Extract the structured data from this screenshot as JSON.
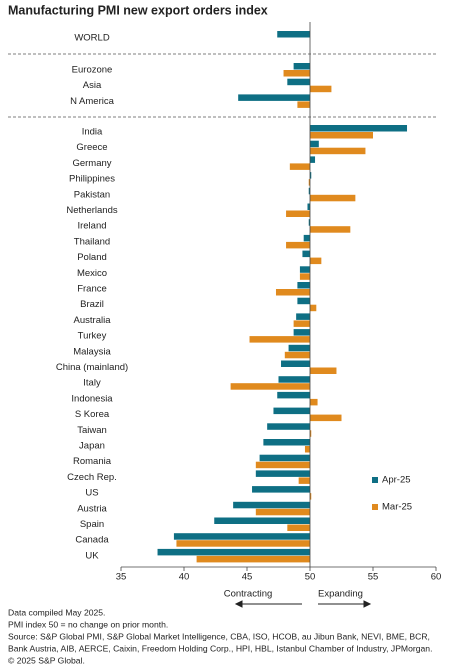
{
  "chart_data": {
    "type": "bar",
    "orientation": "horizontal",
    "title": "Manufacturing PMI new export orders index",
    "categories": [
      "WORLD",
      "Eurozone",
      "Asia",
      "N America",
      "India",
      "Greece",
      "Germany",
      "Philippines",
      "Pakistan",
      "Netherlands",
      "Ireland",
      "Thailand",
      "Poland",
      "Mexico",
      "France",
      "Brazil",
      "Australia",
      "Turkey",
      "Malaysia",
      "China (mainland)",
      "Italy",
      "Indonesia",
      "S Korea",
      "Taiwan",
      "Japan",
      "Romania",
      "Czech Rep.",
      "US",
      "Austria",
      "Spain",
      "Canada",
      "UK"
    ],
    "series": [
      {
        "name": "Apr-25",
        "color": "#0e6f84",
        "values": [
          47.4,
          48.7,
          48.2,
          44.3,
          57.7,
          50.7,
          50.4,
          50.1,
          49.9,
          49.8,
          49.9,
          49.5,
          49.4,
          49.2,
          49.0,
          49.0,
          48.9,
          48.7,
          48.3,
          47.7,
          47.5,
          47.4,
          47.1,
          46.6,
          46.3,
          46.0,
          45.7,
          45.4,
          43.9,
          42.4,
          39.2,
          37.9
        ]
      },
      {
        "name": "Mar-25",
        "color": "#e08a1e",
        "values": [
          null,
          47.9,
          51.7,
          49.0,
          55.0,
          54.4,
          48.4,
          49.9,
          53.6,
          48.1,
          53.2,
          48.1,
          50.9,
          49.2,
          47.3,
          50.5,
          48.7,
          45.2,
          48.0,
          52.1,
          43.7,
          50.6,
          52.5,
          50.1,
          49.6,
          45.7,
          49.1,
          50.1,
          45.7,
          48.2,
          39.4,
          41.0
        ]
      }
    ],
    "base": 50,
    "xlim": [
      35,
      60
    ],
    "xticks": [
      35,
      40,
      45,
      50,
      55,
      60
    ],
    "annotations": [
      "Contracting",
      "Expanding"
    ],
    "notes": [
      "Data compiled May 2025.",
      "PMI index 50 = no change on prior month.",
      "Source: S&P Global PMI, S&P Global Market Intelligence, CBA, ISO, HCOB, au Jibun Bank, NEVI, BME, BCR,",
      "Bank Austria, AIB, AERCE, Caixin, Freedom Holding Corp., HPI, HBL, Istanbul Chamber of Industry, JPMorgan.",
      "© 2025 S&P Global."
    ]
  }
}
